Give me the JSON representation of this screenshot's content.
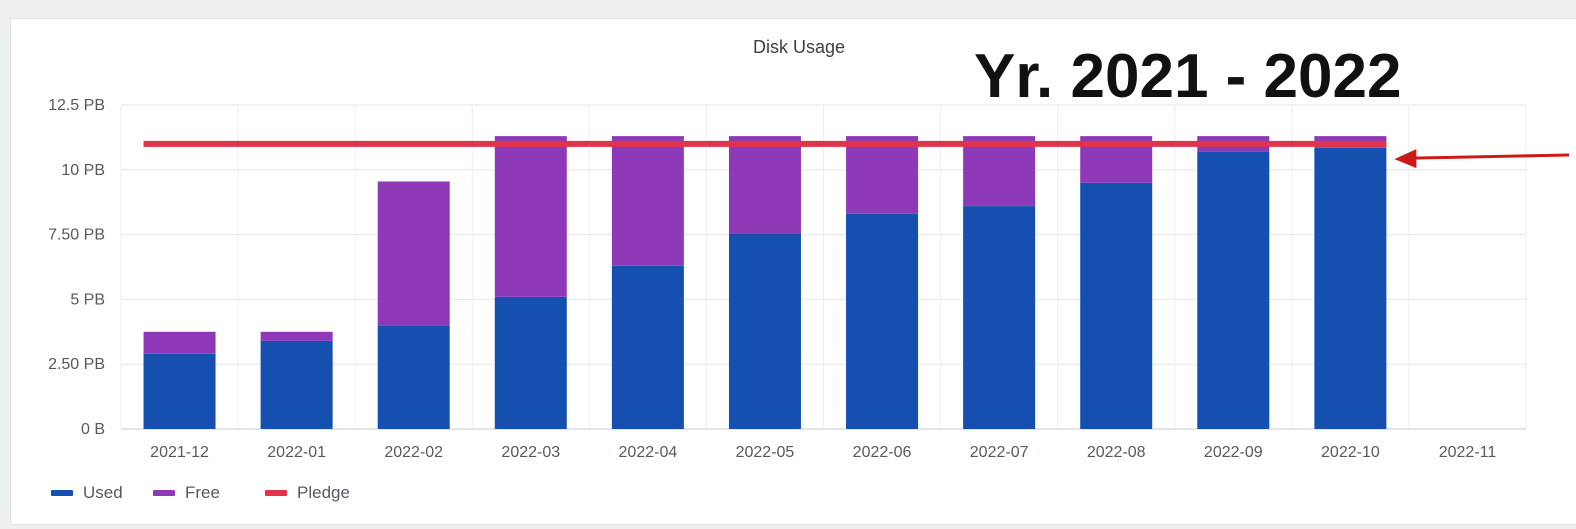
{
  "chart_data": {
    "type": "bar",
    "title": "Disk Usage",
    "annotation": "Yr. 2021 - 2022",
    "categories": [
      "2021-12",
      "2022-01",
      "2022-02",
      "2022-03",
      "2022-04",
      "2022-05",
      "2022-06",
      "2022-07",
      "2022-08",
      "2022-09",
      "2022-10",
      "2022-11"
    ],
    "series": [
      {
        "name": "Used",
        "color": "#1550b0",
        "values": [
          2.9,
          3.4,
          4.0,
          5.1,
          6.3,
          7.55,
          8.3,
          8.6,
          9.5,
          10.7,
          10.85,
          null
        ]
      },
      {
        "name": "Free",
        "color": "#8e3ab8",
        "values": [
          0.85,
          0.35,
          5.55,
          6.2,
          5.0,
          3.75,
          3.0,
          2.7,
          1.8,
          0.6,
          0.45,
          null
        ]
      }
    ],
    "pledge": {
      "name": "Pledge",
      "color": "#e0344d",
      "value": 11.0
    },
    "y_ticks": [
      {
        "value": 0,
        "label": "0 B"
      },
      {
        "value": 2.5,
        "label": "2.50 PB"
      },
      {
        "value": 5,
        "label": "5 PB"
      },
      {
        "value": 7.5,
        "label": "7.50 PB"
      },
      {
        "value": 10,
        "label": "10 PB"
      },
      {
        "value": 12.5,
        "label": "12.5 PB"
      }
    ],
    "ylim": [
      0,
      12.5
    ],
    "stacked": true,
    "grid": true,
    "legend_position": "bottom-left",
    "arrow_color": "#cc1a1a"
  }
}
